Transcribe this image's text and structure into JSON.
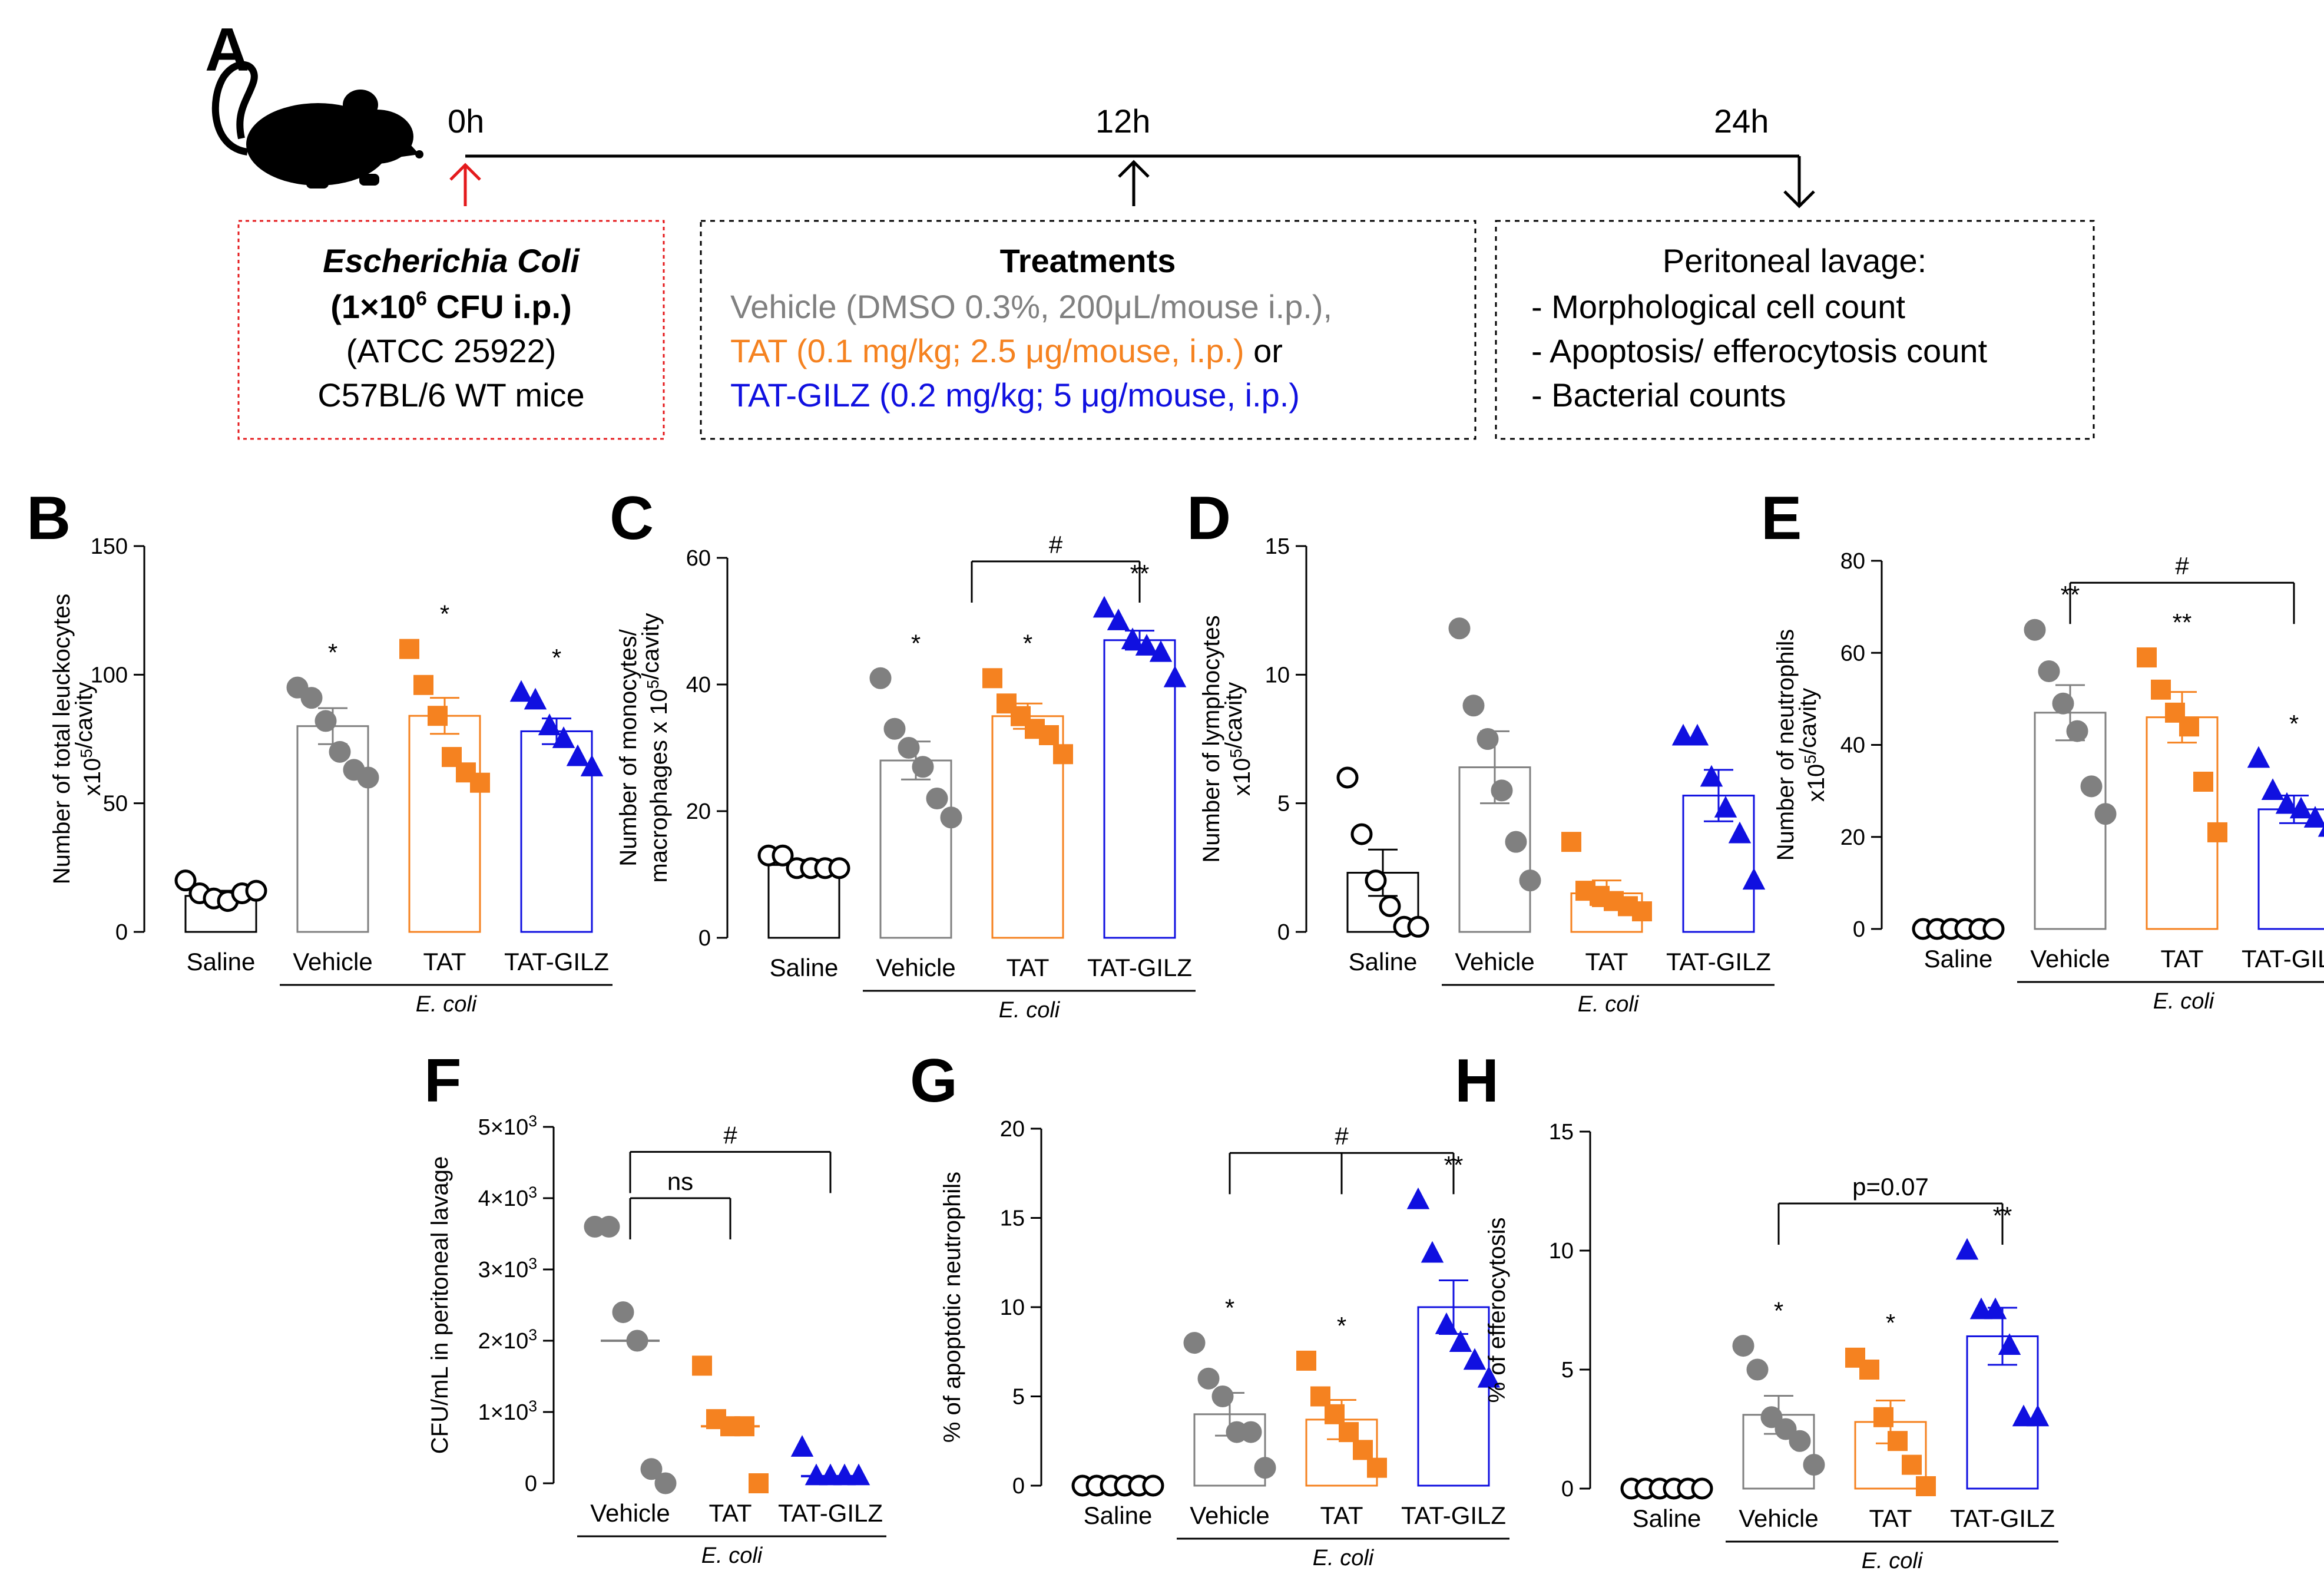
{
  "panel_letters": [
    "A",
    "B",
    "C",
    "D",
    "E",
    "F",
    "G",
    "H"
  ],
  "timeline": {
    "points": [
      "0h",
      "12h",
      "24h"
    ],
    "box1": {
      "title": "Escherichia Coli",
      "dose_main": "(1×10",
      "dose_sup": "6",
      "dose_tail": " CFU i.p.)",
      "strain": "(ATCC 25922)",
      "mice": "C57BL/6 WT mice"
    },
    "box2": {
      "title": "Treatments",
      "vehicle": "Vehicle (DMSO 0.3%, 200μL/mouse i.p.),",
      "tat": "TAT (0.1 mg/kg; 2.5 μg/mouse, i.p.)",
      "or": " or",
      "tatgilz": "TAT-GILZ (0.2 mg/kg; 5 μg/mouse, i.p.)"
    },
    "box3": {
      "title": "Peritoneal lavage:",
      "items": [
        "- Morphological cell count",
        "- Apoptosis/ efferocytosis count",
        "- Bacterial counts"
      ]
    }
  },
  "colors": {
    "saline": "#000000",
    "vehicle": "#808080",
    "tat": "#f58220",
    "tatgilz": "#1010e0",
    "arrow_red": "#e41a1c",
    "box1_border": "#e41a1c"
  },
  "chart_data": [
    {
      "id": "B",
      "type": "bar",
      "ylabel_lines": [
        "Number of total leuckocytes",
        "x10^5/cavity"
      ],
      "ylim": [
        0,
        150
      ],
      "yticks": [
        "0",
        "50",
        "100",
        "150"
      ],
      "ytick_values": [
        0,
        50,
        100,
        150
      ],
      "categories": [
        "Saline",
        "Vehicle",
        "TAT",
        "TAT-GILZ"
      ],
      "group_label": "E. coli",
      "means": [
        14,
        80,
        84,
        78
      ],
      "sem": [
        2,
        7,
        7,
        5
      ],
      "points": [
        [
          20,
          15,
          13,
          12,
          15,
          16
        ],
        [
          95,
          91,
          82,
          70,
          63,
          60
        ],
        [
          110,
          96,
          84,
          68,
          62,
          58
        ],
        [
          93,
          90,
          80,
          75,
          68,
          64
        ]
      ],
      "annotations": [
        "",
        "*",
        "*",
        "*"
      ],
      "brackets": []
    },
    {
      "id": "C",
      "type": "bar",
      "ylabel_lines": [
        "Number of monocytes/",
        "macrophages x 10^5/cavity"
      ],
      "ylim": [
        0,
        60
      ],
      "yticks": [
        "0",
        "20",
        "40",
        "60"
      ],
      "ytick_values": [
        0,
        20,
        40,
        60
      ],
      "categories": [
        "Saline",
        "Vehicle",
        "TAT",
        "TAT-GILZ"
      ],
      "group_label": "E. coli",
      "means": [
        11.5,
        28,
        35,
        47
      ],
      "sem": [
        0.8,
        3,
        2,
        1.5
      ],
      "points": [
        [
          13,
          13,
          11,
          11,
          11,
          11
        ],
        [
          41,
          33,
          30,
          27,
          22,
          19
        ],
        [
          41,
          37,
          35,
          33,
          32,
          29
        ],
        [
          52,
          50,
          47,
          46,
          45,
          41
        ]
      ],
      "annotations": [
        "",
        "*",
        "*",
        "**"
      ],
      "brackets": [
        {
          "from": 1.5,
          "to": 3,
          "label": "#"
        }
      ]
    },
    {
      "id": "D",
      "type": "bar",
      "ylabel_lines": [
        "Number of lymphocytes",
        "x10^5/cavity"
      ],
      "ylim": [
        0,
        15
      ],
      "yticks": [
        "0",
        "5",
        "10",
        "15"
      ],
      "ytick_values": [
        0,
        5,
        10,
        15
      ],
      "categories": [
        "Saline",
        "Vehicle",
        "TAT",
        "TAT-GILZ"
      ],
      "group_label": "E. coli",
      "means": [
        2.3,
        6.4,
        1.5,
        5.3
      ],
      "sem": [
        0.9,
        1.4,
        0.5,
        1.0
      ],
      "points": [
        [
          6,
          3.8,
          2,
          1,
          0.2,
          0.2
        ],
        [
          11.8,
          8.8,
          7.5,
          5.5,
          3.5,
          2
        ],
        [
          3.5,
          1.6,
          1.4,
          1.2,
          1.0,
          0.8
        ],
        [
          7.6,
          7.6,
          6,
          4.8,
          3.8,
          2
        ]
      ],
      "annotations": [
        "",
        "",
        "",
        ""
      ],
      "brackets": []
    },
    {
      "id": "E",
      "type": "bar",
      "ylabel_lines": [
        "Number of neutrophils",
        "x10^5/cavity"
      ],
      "ylim": [
        0,
        80
      ],
      "yticks": [
        "0",
        "20",
        "40",
        "60",
        "80"
      ],
      "ytick_values": [
        0,
        20,
        40,
        60,
        80
      ],
      "categories": [
        "Saline",
        "Vehicle",
        "TAT",
        "TAT-GILZ"
      ],
      "group_label": "E. coli",
      "means": [
        0,
        47,
        46,
        26
      ],
      "sem": [
        0,
        6,
        5.5,
        3
      ],
      "points": [
        [
          0,
          0,
          0,
          0,
          0,
          0
        ],
        [
          65,
          56,
          49,
          43,
          31,
          25
        ],
        [
          59,
          52,
          47,
          44,
          32,
          21
        ],
        [
          37,
          30,
          27,
          26,
          24,
          22
        ]
      ],
      "annotations": [
        "",
        "**",
        "**",
        "*"
      ],
      "brackets": [
        {
          "from": 1,
          "to": 3,
          "label": "#"
        }
      ]
    },
    {
      "id": "F",
      "type": "scatter",
      "ylabel_lines": [
        "CFU/mL in peritoneal lavage"
      ],
      "ylim": [
        0,
        5000
      ],
      "yticks": [
        "0",
        "1×10^3",
        "2×10^3",
        "3×10^3",
        "4×10^3",
        "5×10^3"
      ],
      "ytick_values": [
        0,
        1000,
        2000,
        3000,
        4000,
        5000
      ],
      "categories": [
        "Vehicle",
        "TAT",
        "TAT-GILZ"
      ],
      "group_label": "E. coli",
      "means": [
        2000,
        800,
        100
      ],
      "sem": [],
      "points": [
        [
          3600,
          3600,
          2400,
          2000,
          200,
          0
        ],
        [
          1650,
          900,
          800,
          800,
          0
        ],
        [
          500,
          100,
          100,
          100,
          100
        ]
      ],
      "annotations": [
        "",
        "",
        ""
      ],
      "brackets": [
        {
          "from": 0,
          "to": 1,
          "label": "ns"
        },
        {
          "from": 0,
          "to": 2,
          "label": "#"
        }
      ]
    },
    {
      "id": "G",
      "type": "bar",
      "ylabel_lines": [
        "% of apoptotic neutrophils"
      ],
      "ylim": [
        0,
        20
      ],
      "yticks": [
        "0",
        "5",
        "10",
        "15",
        "20"
      ],
      "ytick_values": [
        0,
        5,
        10,
        15,
        20
      ],
      "categories": [
        "Saline",
        "Vehicle",
        "TAT",
        "TAT-GILZ"
      ],
      "group_label": "E. coli",
      "means": [
        0,
        4,
        3.7,
        10
      ],
      "sem": [
        0,
        1.2,
        1.1,
        1.5
      ],
      "points": [
        [
          0,
          0,
          0,
          0,
          0,
          0
        ],
        [
          8,
          6,
          5,
          3,
          3,
          1
        ],
        [
          7,
          5,
          4,
          3,
          2,
          1
        ],
        [
          16,
          13,
          9,
          8,
          7,
          6
        ]
      ],
      "annotations": [
        "",
        "*",
        "*",
        "**"
      ],
      "brackets": [
        {
          "from": 1,
          "to": 3,
          "mid": 2,
          "label": "#"
        }
      ]
    },
    {
      "id": "H",
      "type": "bar",
      "ylabel_lines": [
        "% of efferocytosis"
      ],
      "ylim": [
        0,
        15
      ],
      "yticks": [
        "0",
        "5",
        "10",
        "15"
      ],
      "ytick_values": [
        0,
        5,
        10,
        15
      ],
      "categories": [
        "Saline",
        "Vehicle",
        "TAT",
        "TAT-GILZ"
      ],
      "group_label": "E. coli",
      "means": [
        0,
        3.1,
        2.8,
        6.4
      ],
      "sem": [
        0,
        0.8,
        0.9,
        1.2
      ],
      "points": [
        [
          0,
          0,
          0,
          0,
          0,
          0
        ],
        [
          6,
          5,
          3,
          2.5,
          2,
          1
        ],
        [
          5.5,
          5,
          3,
          2,
          1,
          0.1
        ],
        [
          10,
          7.5,
          7.5,
          6,
          3,
          3
        ]
      ],
      "annotations": [
        "",
        "*",
        "*",
        "**"
      ],
      "brackets": [
        {
          "from": 1,
          "to": 3,
          "label": "p=0.07"
        }
      ]
    }
  ]
}
